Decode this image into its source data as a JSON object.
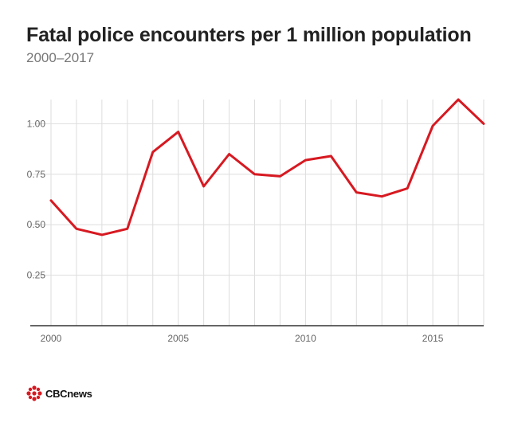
{
  "title": "Fatal police encounters per 1 million population",
  "subtitle": "2000–2017",
  "logo_text": "CBCnews",
  "colors": {
    "line": "#d71921",
    "grid": "#dddddd",
    "axis": "#333333"
  },
  "chart_data": {
    "type": "line",
    "title": "Fatal police encounters per 1 million population",
    "subtitle": "2000–2017",
    "xlabel": "",
    "ylabel": "",
    "x": [
      2000,
      2001,
      2002,
      2003,
      2004,
      2005,
      2006,
      2007,
      2008,
      2009,
      2010,
      2011,
      2012,
      2013,
      2014,
      2015,
      2016,
      2017
    ],
    "series": [
      {
        "values": [
          0.62,
          0.48,
          0.45,
          0.48,
          0.86,
          0.96,
          0.69,
          0.85,
          0.75,
          0.74,
          0.82,
          0.84,
          0.66,
          0.64,
          0.68,
          0.99,
          1.12,
          1.0
        ]
      }
    ],
    "xlim": [
      2000,
      2017
    ],
    "ylim": [
      0,
      1.12
    ],
    "x_ticks": [
      2000,
      2005,
      2010,
      2015
    ],
    "x_tick_labels": [
      "2000",
      "2005",
      "2010",
      "2015"
    ],
    "y_ticks": [
      0.25,
      0.5,
      0.75,
      1.0
    ],
    "y_tick_labels": [
      "0.25",
      "0.50",
      "0.75",
      "1.00"
    ],
    "grid": true,
    "legend": "none"
  }
}
